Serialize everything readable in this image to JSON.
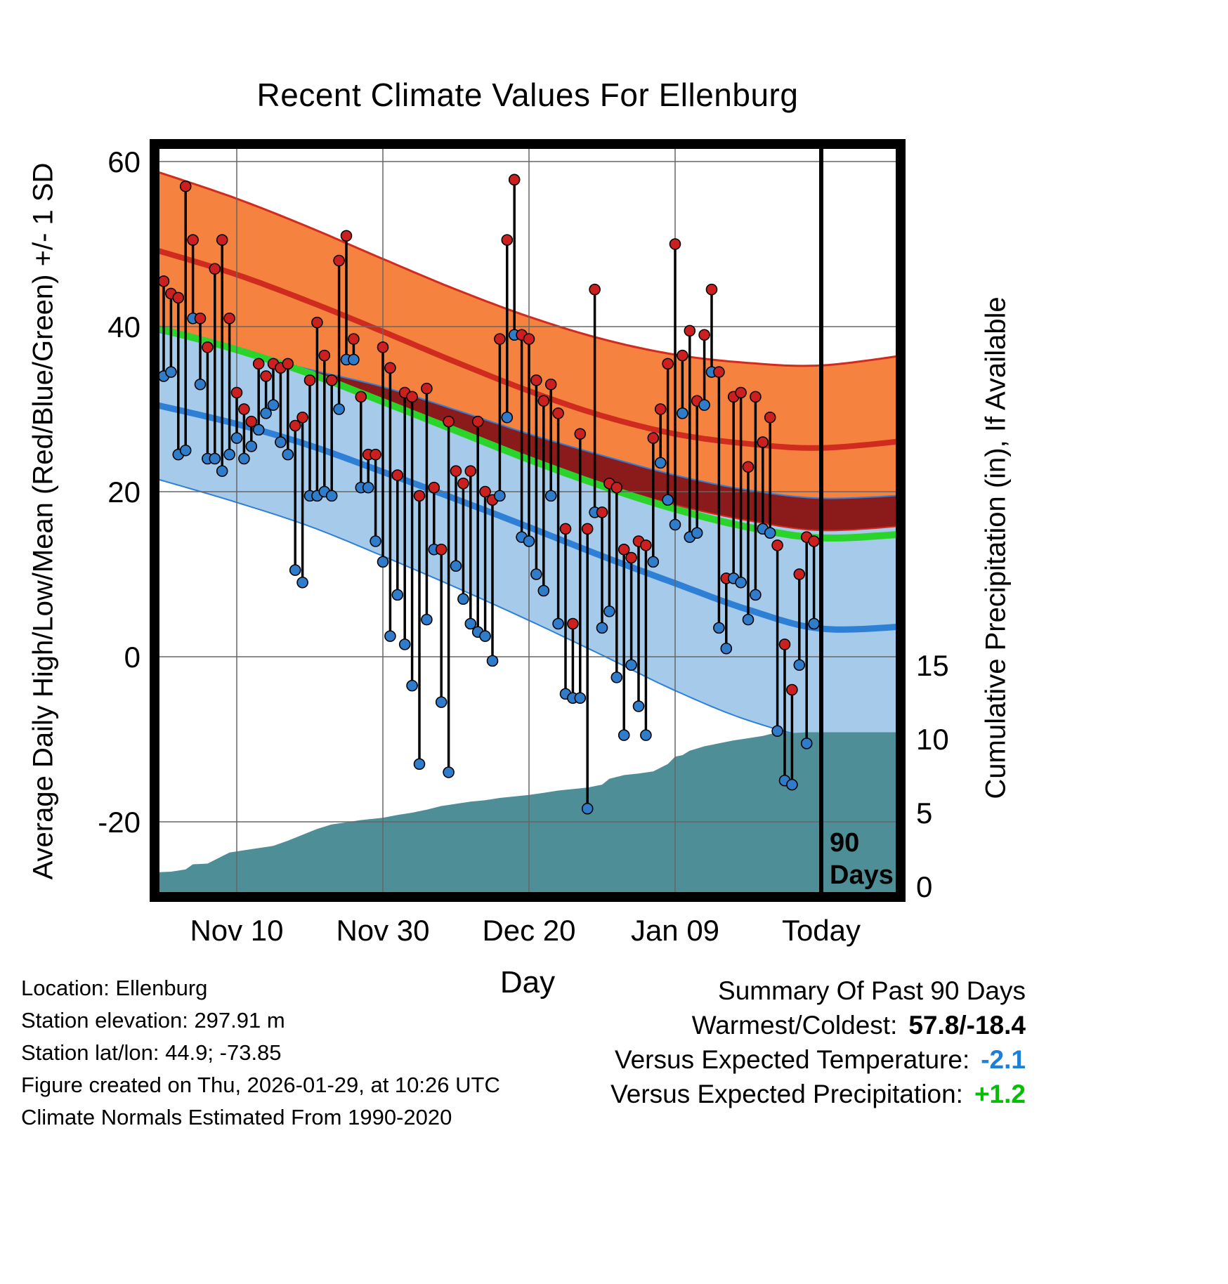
{
  "title": "Recent Climate Values For Ellenburg",
  "axes": {
    "left_label": "Average Daily High/Low/Mean (Red/Blue/Green) +/- 1 SD",
    "right_label": "Cumulative Precipitation (in), If Available",
    "x_label": "Day",
    "x_tick_days": [
      10,
      30,
      50,
      70,
      90
    ],
    "x_tick_labels": [
      "Nov 10",
      "Nov 30",
      "Dec 20",
      "Jan 09",
      "Today"
    ],
    "left_ticks": [
      60,
      40,
      20,
      0,
      -20
    ],
    "right_ticks": [
      15,
      10,
      5,
      0
    ],
    "temp_axis_range_f": [
      -29,
      62
    ],
    "precip_axis_range_in": [
      0,
      15
    ],
    "grid": true
  },
  "chart_data": {
    "type": "line",
    "title": "Recent Climate Values For Ellenburg",
    "xlabel": "Day",
    "ylabel_left": "Average Daily High/Low/Mean (Red/Blue/Green) +/- 1 SD",
    "ylabel_right": "Cumulative Precipitation (in), If Available",
    "x_axis_note": "day index: 0 = 90 days ago, 90 = Today",
    "normals": {
      "days": [
        -2,
        0,
        10,
        20,
        30,
        40,
        50,
        60,
        70,
        80,
        90,
        102
      ],
      "high_plus_sd": [
        59,
        58.5,
        55.5,
        52,
        48.2,
        44.5,
        41.2,
        38.5,
        36.6,
        35.6,
        35.3,
        36.6
      ],
      "mean_high": [
        49.4,
        49,
        46.3,
        43,
        39.4,
        35.7,
        32.2,
        29.2,
        27,
        25.8,
        25.3,
        26.2
      ],
      "high_minus_sd": [
        40.2,
        39.9,
        37.4,
        34.4,
        30.9,
        27.4,
        24.1,
        21,
        18.4,
        16.5,
        15.3,
        15.9
      ],
      "low_plus_sd": [
        39.4,
        39.2,
        37.0,
        34.8,
        32.7,
        29.9,
        27,
        24.4,
        22,
        20.2,
        19.2,
        19.6
      ],
      "mean": [
        39.9,
        39.6,
        37.2,
        34.3,
        30.9,
        27.4,
        23.9,
        20.7,
        17.9,
        15.7,
        14.4,
        14.9
      ],
      "mean_low": [
        30.6,
        30.3,
        28.2,
        25.6,
        22.4,
        19.1,
        15.7,
        12.2,
        8.9,
        5.7,
        3.4,
        3.7
      ],
      "low_minus_sd": [
        21.8,
        21.3,
        18.7,
        15.8,
        12.2,
        8.4,
        4.4,
        0.2,
        -4.1,
        -7.7,
        -9.9,
        -10
      ]
    },
    "daily_observations": {
      "num_days": 90,
      "first_day_index": 0,
      "high": [
        45.5,
        44,
        43.5,
        57,
        50.5,
        41,
        37.5,
        47,
        50.5,
        41,
        32,
        30,
        28.5,
        35.5,
        34,
        35.5,
        35,
        35.5,
        28,
        29,
        33.5,
        40.5,
        36.5,
        33.5,
        48,
        51,
        38.5,
        31.5,
        24.5,
        24.5,
        37.5,
        35,
        22,
        32,
        31.5,
        19.5,
        32.5,
        20.5,
        13,
        28.5,
        22.5,
        21,
        22.5,
        28.5,
        20,
        19,
        38.5,
        50.5,
        57.8,
        39,
        38.5,
        33.5,
        31,
        33,
        29.5,
        15.5,
        4,
        27,
        15.5,
        44.5,
        17.5,
        21,
        20.5,
        13,
        12,
        14,
        13.5,
        26.5,
        30,
        35.5,
        50,
        36.5,
        39.5,
        31,
        39,
        44.5,
        34.5,
        9.5,
        31.5,
        32,
        23,
        31.5,
        26,
        29,
        13.5,
        1.5,
        -4,
        10,
        14.5,
        14
      ],
      "low": [
        34,
        34.5,
        24.5,
        25,
        41,
        33,
        24,
        24,
        22.5,
        24.5,
        26.5,
        24,
        25.5,
        27.5,
        29.5,
        30.5,
        26,
        24.5,
        10.5,
        9,
        19.5,
        19.5,
        20,
        19.5,
        30,
        36,
        36,
        20.5,
        20.5,
        14,
        11.5,
        2.5,
        7.5,
        1.5,
        -3.5,
        -13,
        4.5,
        13,
        -5.5,
        -14,
        11,
        7,
        4,
        3,
        2.5,
        -0.5,
        19.5,
        29,
        39,
        14.5,
        14,
        10,
        8,
        19.5,
        4,
        -4.5,
        -5,
        -5,
        -18.4,
        17.5,
        3.5,
        5.5,
        -2.5,
        -9.5,
        -1,
        -6,
        -9.5,
        11.5,
        23.5,
        19,
        16,
        29.5,
        14.5,
        15,
        30.5,
        34.5,
        3.5,
        1,
        9.5,
        9,
        4.5,
        7.5,
        15.5,
        15,
        -9,
        -15,
        -15.5,
        -1,
        -10.5,
        4
      ]
    },
    "cumulative_precip": {
      "day": [
        -1.3,
        1,
        3,
        4,
        6,
        7,
        9,
        11,
        13,
        15,
        17,
        19,
        21,
        23,
        25,
        27,
        30,
        32,
        34,
        36,
        38,
        40,
        42,
        44,
        46,
        48,
        50,
        52,
        54,
        56,
        58,
        60,
        61,
        63,
        65,
        67,
        69,
        70,
        71,
        72,
        74,
        76,
        78,
        80,
        82,
        84,
        86,
        88,
        90,
        101
      ],
      "inches": [
        0.95,
        1.0,
        1.15,
        1.5,
        1.55,
        1.8,
        2.3,
        2.45,
        2.6,
        2.75,
        3.1,
        3.5,
        3.9,
        4.2,
        4.35,
        4.5,
        4.65,
        4.85,
        5.0,
        5.2,
        5.45,
        5.6,
        5.75,
        5.85,
        6.0,
        6.1,
        6.2,
        6.35,
        6.5,
        6.6,
        6.7,
        6.9,
        7.3,
        7.55,
        7.65,
        7.8,
        8.3,
        8.8,
        8.9,
        9.2,
        9.5,
        9.7,
        9.9,
        10.05,
        10.2,
        10.45,
        10.4,
        10.45,
        10.45,
        10.45
      ]
    },
    "legend_note": "Red = daily high, Blue = daily low, Green = mean; shaded bands are +/- 1 SD climate normals; teal area = cumulative precipitation"
  },
  "annotation_90days": {
    "day": 90,
    "line1": "90",
    "line2": "Days"
  },
  "colors": {
    "orange_band": "#F5823F",
    "red_line": "#CF2B1E",
    "maroon_overlap": "#8B1A1A",
    "green_line": "#2BD42B",
    "blue_line": "#2E7FD6",
    "blue_band": "#A6CBEA",
    "teal_precip": "#4E8E96",
    "high_dot": "#CC2020",
    "low_dot": "#2F7CCB",
    "stem": "#000000",
    "grid": "#666666",
    "temp_delta": "#1E7FD8",
    "precip_delta": "#00C000"
  },
  "footer_left": [
    "Location: Ellenburg",
    "Station elevation: 297.91 m",
    "Station lat/lon: 44.9; -73.85",
    "Figure created on Thu, 2026-01-29, at 10:26 UTC",
    "Climate Normals Estimated From 1990-2020"
  ],
  "summary": {
    "heading": "Summary Of Past 90 Days",
    "rows": [
      {
        "label": "Warmest/Coldest:",
        "value": "57.8/-18.4",
        "color": "#000000"
      },
      {
        "label": "Versus Expected Temperature:",
        "value": "-2.1",
        "color": "#1E7FD8"
      },
      {
        "label": "Versus Expected Precipitation:",
        "value": "+1.2",
        "color": "#00C000"
      }
    ]
  }
}
